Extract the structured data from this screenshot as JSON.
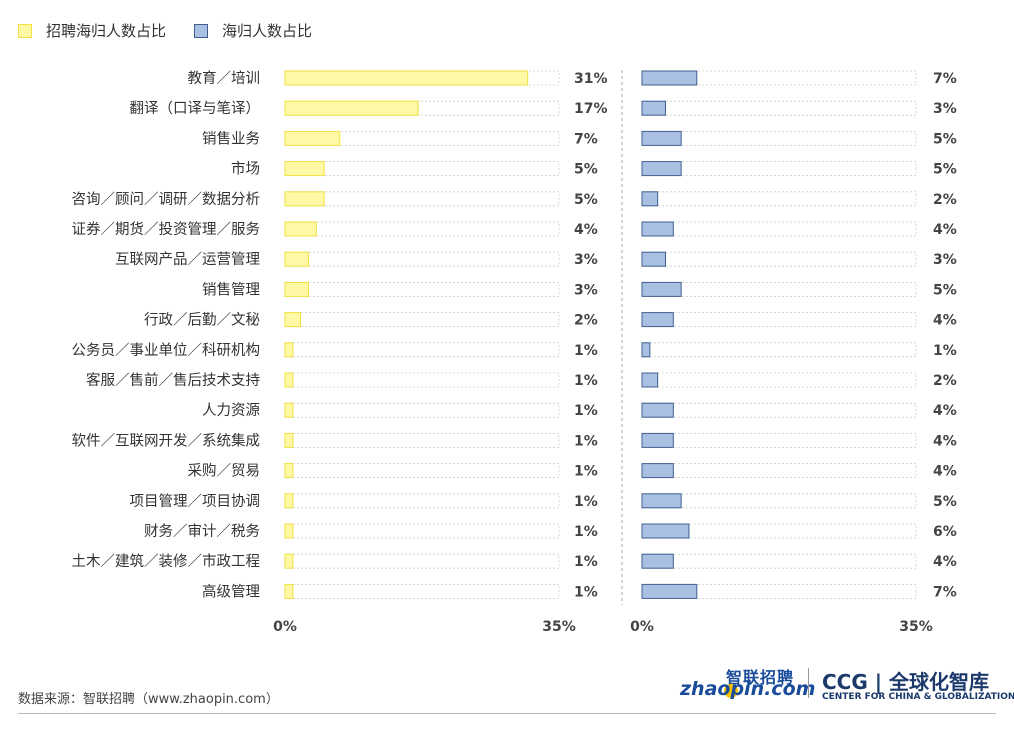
{
  "legend": {
    "items": [
      {
        "label": "招聘海归人数占比",
        "color": "#fff9a6",
        "border": "#f0e040"
      },
      {
        "label": "海归人数占比",
        "color": "#a9c0e2",
        "border": "#3f5f90"
      }
    ]
  },
  "chart_data": {
    "type": "bar",
    "orientation": "horizontal",
    "categories": [
      "教育／培训",
      "翻译（口译与笔译）",
      "销售业务",
      "市场",
      "咨询／顾问／调研／数据分析",
      "证券／期货／投资管理／服务",
      "互联网产品／运营管理",
      "销售管理",
      "行政／后勤／文秘",
      "公务员／事业单位／科研机构",
      "客服／售前／售后技术支持",
      "人力资源",
      "软件／互联网开发／系统集成",
      "采购／贸易",
      "项目管理／项目协调",
      "财务／审计／税务",
      "土木／建筑／装修／市政工程",
      "高级管理"
    ],
    "series": [
      {
        "name": "招聘海归人数占比",
        "values": [
          31,
          17,
          7,
          5,
          5,
          4,
          3,
          3,
          2,
          1,
          1,
          1,
          1,
          1,
          1,
          1,
          1,
          1
        ],
        "labels": [
          "31%",
          "17%",
          "7%",
          "5%",
          "5%",
          "4%",
          "3%",
          "3%",
          "2%",
          "1%",
          "1%",
          "1%",
          "1%",
          "1%",
          "1%",
          "1%",
          "1%",
          "1%"
        ]
      },
      {
        "name": "海归人数占比",
        "values": [
          7,
          3,
          5,
          5,
          2,
          4,
          3,
          5,
          4,
          1,
          2,
          4,
          4,
          4,
          5,
          6,
          4,
          7
        ],
        "labels": [
          "7%",
          "3%",
          "5%",
          "5%",
          "2%",
          "4%",
          "3%",
          "5%",
          "4%",
          "1%",
          "2%",
          "4%",
          "4%",
          "4%",
          "5%",
          "6%",
          "4%",
          "7%"
        ]
      }
    ],
    "xlim": [
      0,
      35
    ],
    "axis_ticks": [
      "0%",
      "35%"
    ]
  },
  "source": "数据来源：智联招聘（www.zhaopin.com）",
  "logos": {
    "zhaopin_cn": "智联招聘",
    "zhaopin_en": "zhaopin.com",
    "ccg_main": "CCG | 全球化智库",
    "ccg_sub": "CENTER FOR CHINA & GLOBALIZATION"
  }
}
